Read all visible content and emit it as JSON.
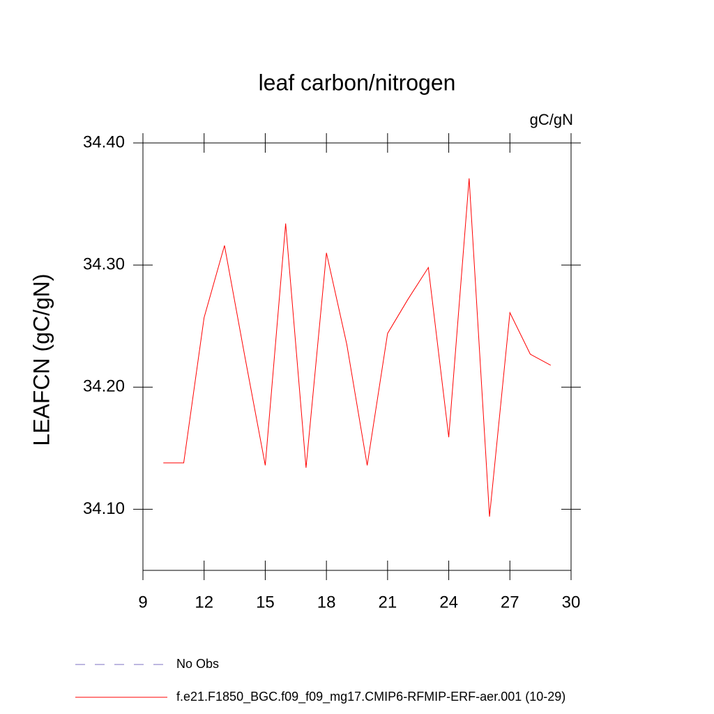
{
  "chart_data": {
    "type": "line",
    "title": "leaf carbon/nitrogen",
    "units_label": "gC/gN",
    "y_label": "LEAFCN  (gC/gN)",
    "x": [
      10,
      11,
      12,
      13,
      14,
      15,
      16,
      17,
      18,
      19,
      20,
      21,
      22,
      23,
      24,
      25,
      26,
      27,
      28,
      29
    ],
    "series": [
      {
        "name": "f.e21.F1850_BGC.f09_f09_mg17.CMIP6-RFMIP-ERF-aer.001 (10-29)",
        "color": "#ff0000",
        "values": [
          34.138,
          34.138,
          34.257,
          34.316,
          34.225,
          34.136,
          34.334,
          34.134,
          34.31,
          34.235,
          34.136,
          34.244,
          34.272,
          34.298,
          34.159,
          34.371,
          34.094,
          34.261,
          34.227,
          34.218
        ]
      }
    ],
    "obs_legend": {
      "name": "No Obs",
      "color": "#7b6fc0"
    },
    "xlim": [
      9,
      30
    ],
    "xticks": [
      9,
      12,
      15,
      18,
      21,
      24,
      27,
      30
    ],
    "ylim": [
      34.05,
      34.4
    ],
    "yticks": [
      {
        "value": 34.1,
        "label": "34.10"
      },
      {
        "value": 34.2,
        "label": "34.20"
      },
      {
        "value": 34.3,
        "label": "34.30"
      },
      {
        "value": 34.4,
        "label": "34.40"
      }
    ]
  }
}
